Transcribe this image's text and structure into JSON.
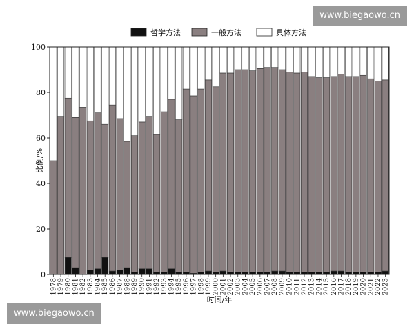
{
  "watermark_top": "www.biegaowo.cn",
  "watermark_bottom": "www.biegaowo.cn",
  "chart_data": {
    "type": "bar",
    "stacked": true,
    "xlabel": "时间/年",
    "ylabel": "比例/%",
    "ylim": [
      0,
      100
    ],
    "yticks": [
      0,
      20,
      40,
      60,
      80,
      100
    ],
    "grid": false,
    "legend_position": "top",
    "categories": [
      "1978",
      "1979",
      "1980",
      "1981",
      "1982",
      "1983",
      "1984",
      "1985",
      "1986",
      "1987",
      "1988",
      "1989",
      "1990",
      "1991",
      "1992",
      "1993",
      "1994",
      "1995",
      "1996",
      "1997",
      "1998",
      "1999",
      "2000",
      "2001",
      "2002",
      "2003",
      "2004",
      "2005",
      "2006",
      "2007",
      "2008",
      "2009",
      "2010",
      "2011",
      "2012",
      "2013",
      "2014",
      "2015",
      "2016",
      "2017",
      "2018",
      "2019",
      "2020",
      "2021",
      "2022",
      "2023"
    ],
    "series": [
      {
        "name": "哲学方法",
        "color": "#111111",
        "values": [
          0,
          0,
          7.5,
          3,
          0,
          2,
          2.5,
          7.5,
          1.5,
          2,
          3,
          1,
          2.5,
          2.5,
          1,
          1,
          2.5,
          1,
          1,
          0.5,
          1,
          1.5,
          1,
          1.5,
          1,
          1,
          1,
          1,
          1,
          1,
          1.5,
          1.5,
          1,
          1,
          1,
          1,
          1,
          1,
          1.5,
          1.5,
          1,
          1,
          1,
          1,
          1,
          1.5
        ]
      },
      {
        "name": "一般方法",
        "color": "#8a7f80",
        "values": [
          50,
          69.5,
          70,
          66,
          73.5,
          65.5,
          68.5,
          58.5,
          73,
          66.5,
          55.5,
          60,
          64.5,
          67,
          60.5,
          70.5,
          74.5,
          67,
          80.5,
          78,
          80.5,
          84,
          81.5,
          87,
          87.5,
          89,
          89,
          88.5,
          89.5,
          90,
          89.5,
          88.5,
          88,
          87.5,
          88,
          86,
          85.5,
          85.5,
          85.5,
          86.5,
          86,
          86,
          86.5,
          85,
          84,
          84
        ]
      },
      {
        "name": "具体方法",
        "color": "#ffffff",
        "values": [
          50,
          30.5,
          22.5,
          31,
          26.5,
          32.5,
          29,
          34,
          25.5,
          31.5,
          41.5,
          39,
          33,
          30.5,
          38.5,
          28.5,
          23,
          32,
          18.5,
          21.5,
          18.5,
          14.5,
          17.5,
          11.5,
          11.5,
          10,
          10,
          10.5,
          9.5,
          9,
          9,
          10,
          11,
          11.5,
          11,
          13,
          13.5,
          13.5,
          13,
          12,
          13,
          13,
          12.5,
          14,
          15,
          14.5
        ]
      }
    ]
  }
}
